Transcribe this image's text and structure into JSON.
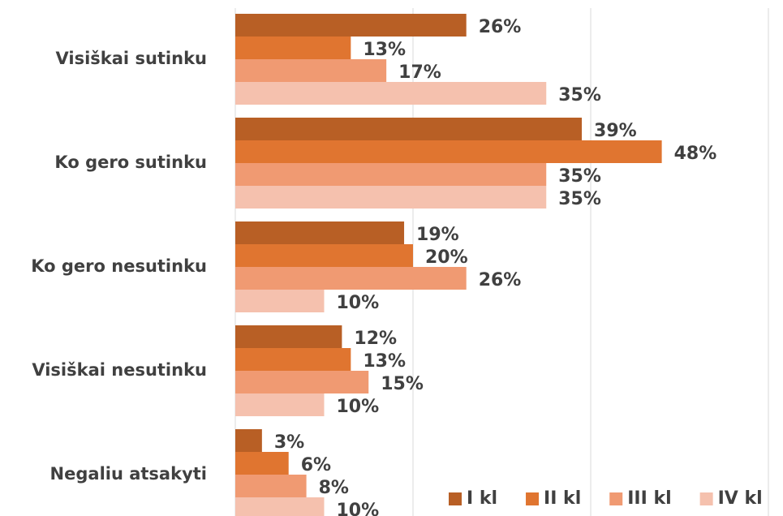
{
  "chart_data": {
    "type": "bar",
    "orientation": "horizontal",
    "categories": [
      "Visiškai sutinku",
      "Ko gero sutinku",
      "Ko gero nesutinku",
      "Visiškai nesutinku",
      "Negaliu atsakyti"
    ],
    "series": [
      {
        "name": "I kl",
        "color": "#b85f25",
        "values": [
          26,
          39,
          19,
          12,
          3
        ],
        "value_labels": [
          "26%",
          "39%",
          "19%",
          "12%",
          "3%"
        ]
      },
      {
        "name": "II kl",
        "color": "#e07530",
        "values": [
          13,
          48,
          20,
          13,
          6
        ],
        "value_labels": [
          "13%",
          "48%",
          "20%",
          "13%",
          "6%"
        ]
      },
      {
        "name": "III kl",
        "color": "#f09a72",
        "values": [
          17,
          35,
          26,
          15,
          8
        ],
        "value_labels": [
          "17%",
          "35%",
          "26%",
          "15%",
          "8%"
        ]
      },
      {
        "name": "IV kl",
        "color": "#f5c1ae",
        "values": [
          35,
          35,
          10,
          10,
          10
        ],
        "value_labels": [
          "35%",
          "35%",
          "10%",
          "10%",
          "10%"
        ]
      }
    ],
    "xlim": [
      0,
      60
    ],
    "xticks": [
      0,
      20,
      40,
      60
    ],
    "grid": true,
    "legend": "bottom-right"
  }
}
